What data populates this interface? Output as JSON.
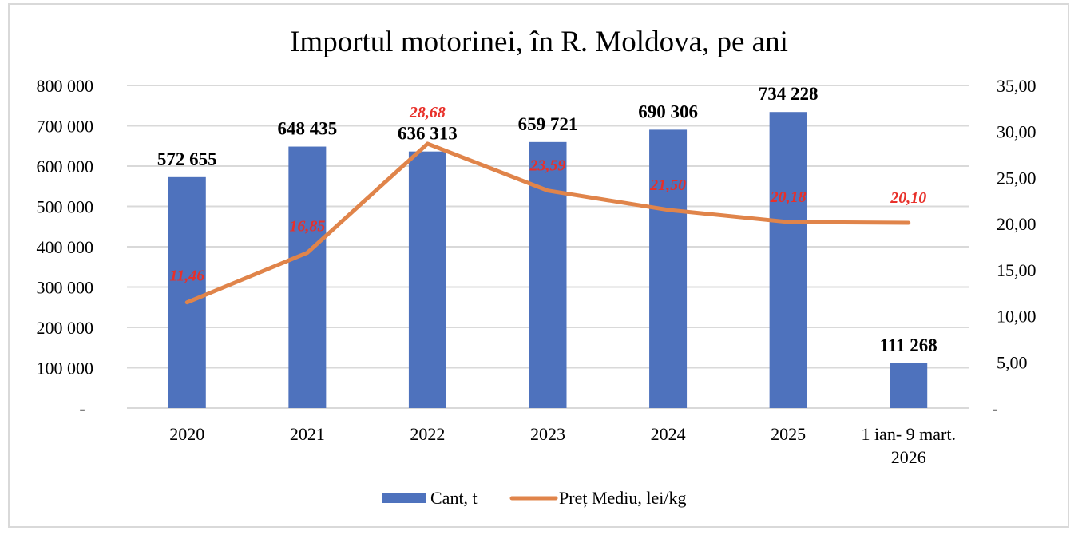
{
  "chart_data": {
    "type": "bar+line",
    "title": "Importul motorinei, în R. Moldova, pe ani",
    "categories": [
      [
        "2020"
      ],
      [
        "2021"
      ],
      [
        "2022"
      ],
      [
        "2023"
      ],
      [
        "2024"
      ],
      [
        "2025"
      ],
      [
        "1 ian- 9 mart.",
        "2026"
      ]
    ],
    "series": [
      {
        "name": "Cant, t",
        "type": "bar",
        "axis": "left",
        "color": "#4e72bd",
        "values": [
          572655,
          648435,
          636313,
          659721,
          690306,
          734228,
          111268
        ],
        "labels": [
          "572 655",
          "648 435",
          "636 313",
          "659 721",
          "690 306",
          "734 228",
          "111 268"
        ]
      },
      {
        "name": "Preț Mediu, lei/kg",
        "type": "line",
        "axis": "right",
        "color": "#e0844a",
        "label_color": "#e8302a",
        "values": [
          11.46,
          16.85,
          28.68,
          23.59,
          21.5,
          20.18,
          20.1
        ],
        "labels": [
          "11,46",
          "16,85",
          "28,68",
          "23,59",
          "21,50",
          "20,18",
          "20,10"
        ]
      }
    ],
    "y_left": {
      "range": [
        0,
        800000
      ],
      "ticks": [
        0,
        100000,
        200000,
        300000,
        400000,
        500000,
        600000,
        700000,
        800000
      ],
      "tick_labels": [
        "-",
        "100 000",
        "200 000",
        "300 000",
        "400 000",
        "500 000",
        "600 000",
        "700 000",
        "800 000"
      ]
    },
    "y_right": {
      "range": [
        0,
        35
      ],
      "ticks": [
        0,
        5,
        10,
        15,
        20,
        25,
        30,
        35
      ],
      "tick_labels": [
        "-",
        "5,00",
        "10,00",
        "15,00",
        "20,00",
        "25,00",
        "30,00",
        "35,00"
      ]
    },
    "grid": true,
    "gridline_color": "#d9d9d9",
    "legend": {
      "position": "bottom",
      "entries": [
        "Cant, t",
        "Preț Mediu, lei/kg"
      ]
    }
  }
}
